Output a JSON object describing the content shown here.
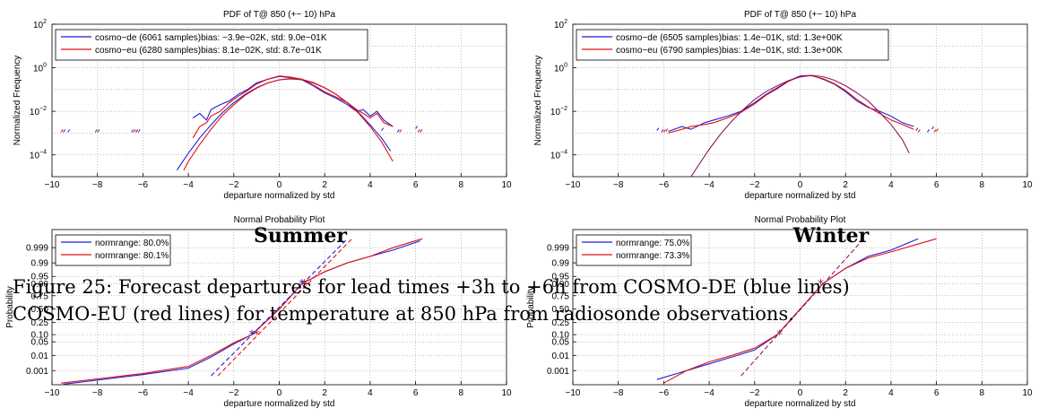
{
  "colors": {
    "cosmo_de": "#1f1fd6",
    "cosmo_eu": "#e01010",
    "grid": "#999999"
  },
  "labels": {
    "summer": "Summer",
    "winter": "Winter",
    "caption_line1": "Figure 25: Forecast departures for lead times +3h to +6h from COSMO-DE (blue lines)",
    "caption_line2": "COSMO-EU (red lines) for temperature at 850 hPa from radiosonde observations."
  },
  "chart_data": [
    {
      "id": "pdf-summer",
      "type": "line",
      "title": "PDF of T@ 850 (+− 10) hPa",
      "xlabel": "departure normalized by std",
      "ylabel": "Normalized Frequency",
      "xlim": [
        -10,
        10
      ],
      "ylim_log10": [
        -5,
        2
      ],
      "yscale": "log",
      "xticks": [
        "−10",
        "−8",
        "−6",
        "−4",
        "−2",
        "0",
        "2",
        "4",
        "6",
        "8",
        "10"
      ],
      "yticks": [
        {
          "base": "10",
          "exp": "2"
        },
        {
          "base": "10",
          "exp": "0"
        },
        {
          "base": "10",
          "exp": "−2"
        },
        {
          "base": "10",
          "exp": "−4"
        }
      ],
      "ytick_exps": [
        2,
        0,
        -2,
        -4
      ],
      "legend_position": "top-left",
      "grid": true,
      "series": [
        {
          "name": "cosmo−de (6061 samples)bias: −3.9e−02K, std: 9.0e−01K",
          "color": "#1f1fd6",
          "x": [
            -3.8,
            -3.5,
            -3.2,
            -3.0,
            -2.6,
            -2.2,
            -1.8,
            -1.4,
            -1.0,
            -0.5,
            0,
            0.5,
            1.0,
            1.5,
            2.0,
            2.5,
            3.0,
            3.4,
            3.7,
            4.0,
            4.3,
            4.6,
            5.0
          ],
          "y": [
            0.005,
            0.008,
            0.004,
            0.012,
            0.02,
            0.03,
            0.06,
            0.1,
            0.2,
            0.3,
            0.4,
            0.35,
            0.28,
            0.15,
            0.07,
            0.04,
            0.02,
            0.01,
            0.012,
            0.006,
            0.01,
            0.004,
            0.002
          ]
        },
        {
          "name": "cosmo−eu (6280 samples)bias: 8.1e−02K, std: 8.7e−01K",
          "color": "#e01010",
          "x": [
            -3.8,
            -3.5,
            -3.2,
            -3.0,
            -2.6,
            -2.2,
            -1.8,
            -1.4,
            -1.0,
            -0.5,
            0,
            0.5,
            1.0,
            1.5,
            2.0,
            2.5,
            3.0,
            3.4,
            3.7,
            4.0,
            4.3,
            4.6,
            5.0
          ],
          "y": [
            0.0006,
            0.002,
            0.003,
            0.006,
            0.01,
            0.025,
            0.05,
            0.09,
            0.18,
            0.3,
            0.42,
            0.37,
            0.3,
            0.16,
            0.08,
            0.045,
            0.025,
            0.012,
            0.008,
            0.005,
            0.008,
            0.003,
            0.002
          ]
        },
        {
          "name": "",
          "color": "#1f1fd6",
          "smooth": true,
          "mu": -0.039,
          "sigma": 0.9,
          "x": [
            -4.5,
            -4,
            -3.5,
            -3,
            -2.5,
            -2,
            -1.5,
            -1,
            -0.5,
            0,
            0.5,
            1,
            1.5,
            2,
            2.5,
            3,
            3.5,
            4,
            4.5,
            4.9
          ],
          "y": [
            2e-05,
            0.00012,
            0.0006,
            0.0024,
            0.0087,
            0.025,
            0.06,
            0.12,
            0.2,
            0.28,
            0.31,
            0.28,
            0.2,
            0.12,
            0.06,
            0.025,
            0.0087,
            0.0024,
            0.0006,
            0.00015
          ]
        },
        {
          "name": "",
          "color": "#e01010",
          "smooth": true,
          "mu": 0.081,
          "sigma": 0.87,
          "x": [
            -4.2,
            -4,
            -3.5,
            -3,
            -2.5,
            -2,
            -1.5,
            -1,
            -0.5,
            0,
            0.5,
            1,
            1.5,
            2,
            2.5,
            3,
            3.5,
            4,
            4.5,
            5.0
          ],
          "y": [
            2e-05,
            5e-05,
            0.0003,
            0.0015,
            0.0065,
            0.02,
            0.055,
            0.115,
            0.2,
            0.28,
            0.32,
            0.29,
            0.21,
            0.12,
            0.06,
            0.024,
            0.008,
            0.002,
            0.0004,
            5e-05
          ]
        }
      ],
      "scatter_outliers": [
        {
          "color": "#1f1fd6",
          "x": [
            -9.5,
            -9.3,
            -8.0,
            -6.5,
            -6.3,
            4.5,
            5.2,
            6.0,
            6.2
          ],
          "y": [
            0.0011,
            0.0011,
            0.0011,
            0.0011,
            0.0011,
            0.0013,
            0.0011,
            0.0016,
            0.0011
          ]
        },
        {
          "color": "#e01010",
          "x": [
            -9.6,
            -8.1,
            -6.4,
            -6.2,
            5.3,
            6.1
          ],
          "y": [
            0.0011,
            0.0011,
            0.0011,
            0.0011,
            0.0011,
            0.0011
          ]
        }
      ]
    },
    {
      "id": "pdf-winter",
      "type": "line",
      "title": "PDF of T@ 850 (+− 10) hPa",
      "xlabel": "departure normalized by std",
      "ylabel": "Normalized Frequency",
      "xlim": [
        -10,
        10
      ],
      "ylim_log10": [
        -5,
        2
      ],
      "yscale": "log",
      "xticks": [
        "−10",
        "−8",
        "−6",
        "−4",
        "−2",
        "0",
        "2",
        "4",
        "6",
        "8",
        "10"
      ],
      "yticks": [
        {
          "base": "10",
          "exp": "2"
        },
        {
          "base": "10",
          "exp": "0"
        },
        {
          "base": "10",
          "exp": "−2"
        },
        {
          "base": "10",
          "exp": "−4"
        }
      ],
      "ytick_exps": [
        2,
        0,
        -2,
        -4
      ],
      "legend_position": "top-left",
      "grid": true,
      "series": [
        {
          "name": "cosmo−de (6505 samples)bias: 1.4e−01K, std: 1.3e+00K",
          "color": "#1f1fd6",
          "x": [
            -5.8,
            -5.2,
            -4.8,
            -4.2,
            -3.8,
            -3.2,
            -2.6,
            -2.0,
            -1.5,
            -1.0,
            -0.5,
            0,
            0.5,
            1.0,
            1.5,
            2.0,
            2.5,
            3.0,
            3.5,
            4.0,
            4.5,
            5.0
          ],
          "y": [
            0.0012,
            0.002,
            0.0015,
            0.003,
            0.004,
            0.006,
            0.01,
            0.025,
            0.06,
            0.12,
            0.25,
            0.42,
            0.45,
            0.3,
            0.18,
            0.08,
            0.03,
            0.015,
            0.01,
            0.006,
            0.003,
            0.002
          ]
        },
        {
          "name": "cosmo−eu (6790 samples)bias: 1.4e−01K, std: 1.3e+00K",
          "color": "#e01010",
          "x": [
            -5.8,
            -5.2,
            -4.8,
            -4.2,
            -3.8,
            -3.2,
            -2.6,
            -2.0,
            -1.5,
            -1.0,
            -0.5,
            0,
            0.5,
            1.0,
            1.5,
            2.0,
            2.5,
            3.0,
            3.5,
            4.0,
            4.5,
            5.0
          ],
          "y": [
            0.001,
            0.0015,
            0.002,
            0.0025,
            0.003,
            0.005,
            0.009,
            0.022,
            0.055,
            0.11,
            0.24,
            0.4,
            0.43,
            0.32,
            0.19,
            0.09,
            0.035,
            0.016,
            0.008,
            0.004,
            0.0025,
            0.0015
          ]
        },
        {
          "name": "",
          "color": "#8b1a5e",
          "smooth": true,
          "mu": 0.14,
          "sigma": 1.0,
          "x": [
            -4.8,
            -4.5,
            -4,
            -3.5,
            -3,
            -2.5,
            -2,
            -1.5,
            -1,
            -0.5,
            0,
            0.5,
            1,
            1.5,
            2,
            2.5,
            3,
            3.5,
            4,
            4.5,
            4.8
          ],
          "y": [
            1e-05,
            3e-05,
            0.00018,
            0.0009,
            0.0036,
            0.012,
            0.035,
            0.08,
            0.15,
            0.26,
            0.38,
            0.45,
            0.39,
            0.27,
            0.15,
            0.07,
            0.03,
            0.009,
            0.0025,
            0.0005,
            0.00012
          ]
        }
      ],
      "scatter_outliers": [
        {
          "color": "#1f1fd6",
          "x": [
            -6.3,
            -6.1,
            5.1,
            5.6,
            5.8
          ],
          "y": [
            0.0013,
            0.0011,
            0.0013,
            0.0011,
            0.0015
          ]
        },
        {
          "color": "#e01010",
          "x": [
            -6.0,
            -5.9,
            5.2,
            5.9,
            6.0
          ],
          "y": [
            0.0011,
            0.0012,
            0.0011,
            0.0011,
            0.0012
          ]
        }
      ]
    },
    {
      "id": "npp-summer",
      "type": "line",
      "title": "Normal Probability Plot",
      "xlabel": "departure normalized by std",
      "ylabel": "Probability",
      "xlim": [
        -10,
        10
      ],
      "yscale": "normal-probability",
      "ylim_z": [
        -3.8,
        4.0
      ],
      "xticks": [
        "−10",
        "−8",
        "−6",
        "−4",
        "−2",
        "0",
        "2",
        "4",
        "6",
        "8",
        "10"
      ],
      "yticks": [
        "0.999",
        "0.99",
        "0.95",
        "0.90",
        "0.75",
        "0.50",
        "0.25",
        "0.10",
        "0.05",
        "0.01",
        "0.001"
      ],
      "ytick_probs": [
        0.999,
        0.99,
        0.95,
        0.9,
        0.75,
        0.5,
        0.25,
        0.1,
        0.05,
        0.01,
        0.001
      ],
      "legend_position": "top-left",
      "grid": true,
      "series": [
        {
          "name": "normrange: 80.0%",
          "color": "#1f1fd6",
          "x": [
            -9.5,
            -6,
            -4,
            -3,
            -2,
            -1.2,
            0,
            1.0,
            2.0,
            3.0,
            4.0,
            5.0,
            6.2
          ],
          "p": [
            8e-05,
            0.0005,
            0.0015,
            0.008,
            0.04,
            0.1,
            0.5,
            0.9,
            0.97,
            0.99,
            0.996,
            0.9985,
            0.9997
          ]
        },
        {
          "name": "normrange: 80.1%",
          "color": "#e01010",
          "x": [
            -9.6,
            -6,
            -4,
            -3,
            -2,
            -1.2,
            0,
            1.0,
            2.0,
            3.0,
            4.0,
            5.0,
            6.3
          ],
          "p": [
            0.0001,
            0.0006,
            0.002,
            0.01,
            0.045,
            0.1,
            0.5,
            0.9,
            0.97,
            0.99,
            0.996,
            0.999,
            0.9998
          ]
        }
      ],
      "fit_lines": [
        {
          "color": "#1f1fd6",
          "x": [
            -3.0,
            3.0
          ],
          "p": [
            0.0004,
            0.9998
          ]
        },
        {
          "color": "#e01010",
          "x": [
            -2.7,
            3.2
          ],
          "p": [
            0.0004,
            0.9998
          ]
        }
      ],
      "markers": [
        {
          "color": "#1f1fd6",
          "x": -1.2,
          "p": 0.1
        },
        {
          "color": "#1f1fd6",
          "x": 1.0,
          "p": 0.9
        },
        {
          "color": "#e01010",
          "x": -1.0,
          "p": 0.1
        },
        {
          "color": "#e01010",
          "x": 1.1,
          "p": 0.9
        }
      ]
    },
    {
      "id": "npp-winter",
      "type": "line",
      "title": "Normal Probability Plot",
      "xlabel": "departure normalized by std",
      "ylabel": "Probability",
      "xlim": [
        -10,
        10
      ],
      "yscale": "normal-probability",
      "ylim_z": [
        -3.8,
        4.0
      ],
      "xticks": [
        "−10",
        "−8",
        "−6",
        "−4",
        "−2",
        "0",
        "2",
        "4",
        "6",
        "8",
        "10"
      ],
      "yticks": [
        "0.999",
        "0.99",
        "0.95",
        "0.90",
        "0.75",
        "0.50",
        "0.25",
        "0.10",
        "0.05",
        "0.01",
        "0.001"
      ],
      "ytick_probs": [
        0.999,
        0.99,
        0.95,
        0.9,
        0.75,
        0.5,
        0.25,
        0.1,
        0.05,
        0.01,
        0.001
      ],
      "legend_position": "top-left",
      "grid": true,
      "series": [
        {
          "name": "normrange: 75.0%",
          "color": "#1f1fd6",
          "x": [
            -6.3,
            -5,
            -4,
            -3,
            -2,
            -1,
            0,
            1,
            2,
            3,
            4,
            5.2
          ],
          "p": [
            0.0002,
            0.001,
            0.003,
            0.008,
            0.02,
            0.1,
            0.5,
            0.9,
            0.98,
            0.996,
            0.9985,
            0.9998
          ]
        },
        {
          "name": "normrange: 73.3%",
          "color": "#e01010",
          "x": [
            -6.0,
            -5,
            -4,
            -3,
            -2,
            -1,
            0,
            1,
            2,
            3,
            4,
            6.0
          ],
          "p": [
            0.0001,
            0.001,
            0.004,
            0.01,
            0.025,
            0.1,
            0.5,
            0.9,
            0.98,
            0.995,
            0.998,
            0.9998
          ]
        }
      ],
      "fit_lines": [
        {
          "color": "#8b1a5e",
          "x": [
            -2.6,
            2.8
          ],
          "p": [
            0.0004,
            0.9998
          ]
        }
      ],
      "markers": [
        {
          "color": "#8b1a5e",
          "x": -0.9,
          "p": 0.1
        },
        {
          "color": "#8b1a5e",
          "x": 0.9,
          "p": 0.9
        }
      ]
    }
  ]
}
